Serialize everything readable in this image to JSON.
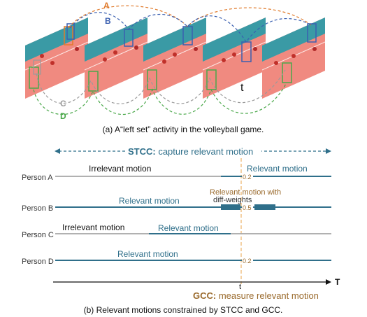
{
  "panel_a": {
    "caption": "(a) A“left set” activity in the volleyball game.",
    "arc_labels": {
      "a": "A",
      "b": "B",
      "c": "C",
      "d": "D"
    },
    "time_marker": "t"
  },
  "panel_b": {
    "stcc_label_bold": "STCC:",
    "stcc_label_rest": " capture relevant motion",
    "gcc_label_bold": "GCC:",
    "gcc_label_rest": " measure relevant motion",
    "axis_label": "T",
    "t_label": "t",
    "caption": "(b) Relevant motions constrained by  STCC and GCC.",
    "persons": [
      {
        "name": "Person A",
        "left_text": "Irrelevant motion",
        "right_text": "Relevant motion",
        "weight": "0.2"
      },
      {
        "name": "Person B",
        "top_text_1": "Relevant motion with",
        "top_text_2": "diff-weights",
        "mid_text": "Relevant motion",
        "weight": "0.5"
      },
      {
        "name": "Person C",
        "left_text": "Irrelevant motion",
        "right_text": "Relevant motion"
      },
      {
        "name": "Person D",
        "mid_text": "Relevant motion",
        "weight": "0.2"
      }
    ]
  },
  "colors": {
    "teal": "#2f6f8a",
    "gray": "#a6a6a6",
    "orange": "#e07a2b",
    "blue": "#3a5fb0",
    "green": "#4aa84a",
    "brown": "#9a6a2c",
    "court": "#f08a80",
    "wall": "#3a9aa5"
  }
}
